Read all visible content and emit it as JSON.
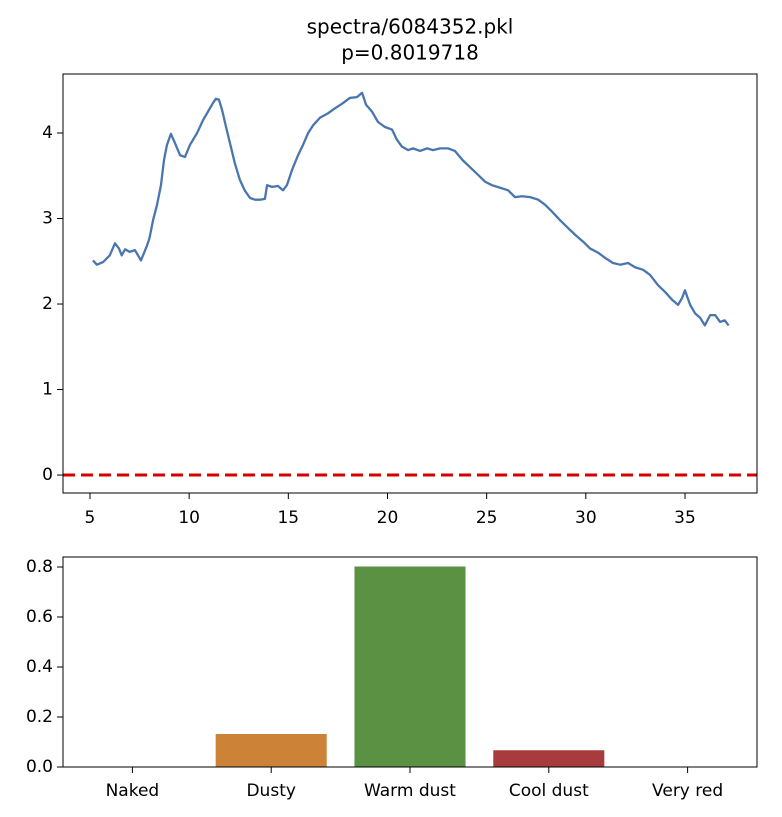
{
  "chart_data": [
    {
      "type": "line",
      "title": "spectra/6084352.pkl",
      "subtitle": "p=0.8019718",
      "x": [
        5.15,
        5.35,
        5.66,
        6.0,
        6.26,
        6.46,
        6.6,
        6.77,
        7.0,
        7.27,
        7.57,
        7.87,
        8.0,
        8.18,
        8.38,
        8.58,
        8.73,
        8.88,
        9.08,
        9.29,
        9.54,
        9.79,
        10.04,
        10.4,
        10.7,
        10.95,
        11.2,
        11.35,
        11.5,
        11.66,
        11.86,
        12.06,
        12.3,
        12.56,
        12.8,
        13.07,
        13.32,
        13.57,
        13.82,
        13.93,
        14.18,
        14.48,
        14.73,
        14.93,
        15.19,
        15.49,
        15.74,
        16.0,
        16.25,
        16.6,
        17.0,
        17.36,
        17.76,
        18.1,
        18.46,
        18.72,
        18.92,
        19.22,
        19.52,
        19.87,
        20.23,
        20.48,
        20.73,
        21.04,
        21.29,
        21.64,
        22.0,
        22.3,
        22.65,
        23.05,
        23.4,
        23.8,
        24.16,
        24.57,
        24.92,
        25.27,
        25.68,
        26.08,
        26.43,
        26.79,
        27.19,
        27.6,
        27.95,
        28.3,
        28.7,
        29.1,
        29.46,
        29.86,
        30.21,
        30.62,
        30.97,
        31.37,
        31.73,
        32.13,
        32.48,
        32.89,
        33.24,
        33.64,
        34.0,
        34.35,
        34.65,
        34.85,
        35.0,
        35.26,
        35.51,
        35.76,
        36.0,
        36.27,
        36.52,
        36.77,
        37.0,
        37.2
      ],
      "series": [
        {
          "color": "#4a76ae",
          "values": [
            2.51,
            2.46,
            2.49,
            2.57,
            2.71,
            2.65,
            2.57,
            2.64,
            2.61,
            2.63,
            2.51,
            2.68,
            2.77,
            2.98,
            3.16,
            3.39,
            3.68,
            3.86,
            3.99,
            3.88,
            3.74,
            3.72,
            3.86,
            4.0,
            4.15,
            4.25,
            4.35,
            4.4,
            4.39,
            4.27,
            4.07,
            3.88,
            3.65,
            3.45,
            3.33,
            3.24,
            3.22,
            3.22,
            3.23,
            3.39,
            3.37,
            3.38,
            3.33,
            3.39,
            3.57,
            3.74,
            3.86,
            4.0,
            4.09,
            4.18,
            4.23,
            4.29,
            4.35,
            4.41,
            4.42,
            4.47,
            4.33,
            4.25,
            4.13,
            4.07,
            4.04,
            3.92,
            3.84,
            3.8,
            3.82,
            3.79,
            3.82,
            3.8,
            3.82,
            3.82,
            3.79,
            3.68,
            3.6,
            3.51,
            3.43,
            3.39,
            3.36,
            3.33,
            3.25,
            3.26,
            3.25,
            3.22,
            3.16,
            3.08,
            2.98,
            2.89,
            2.81,
            2.73,
            2.65,
            2.6,
            2.54,
            2.48,
            2.46,
            2.48,
            2.43,
            2.4,
            2.34,
            2.22,
            2.14,
            2.05,
            1.99,
            2.07,
            2.16,
            1.99,
            1.89,
            1.84,
            1.75,
            1.87,
            1.87,
            1.79,
            1.81,
            1.75
          ]
        }
      ],
      "xlim": [
        3.64,
        38.63
      ],
      "xticks": [
        5,
        10,
        15,
        20,
        25,
        30,
        35
      ],
      "ylim": [
        -0.21,
        4.69
      ],
      "yticks": [
        0,
        1,
        2,
        3,
        4
      ],
      "hline": 0,
      "hline_color": "#d40000"
    },
    {
      "type": "bar",
      "categories": [
        "Naked",
        "Dusty",
        "Warm dust",
        "Cool dust",
        "Very red"
      ],
      "values": [
        0,
        0.132,
        0.8019718,
        0.067,
        0
      ],
      "colors": [
        "#4c72b0",
        "#cc8237",
        "#5b9143",
        "#a83b3b",
        "#7a5fa8"
      ],
      "ylim": [
        0,
        0.84
      ],
      "yticks": [
        {
          "value": 0,
          "label": "0.0"
        },
        0.2,
        0.4,
        0.6,
        0.8
      ]
    }
  ]
}
